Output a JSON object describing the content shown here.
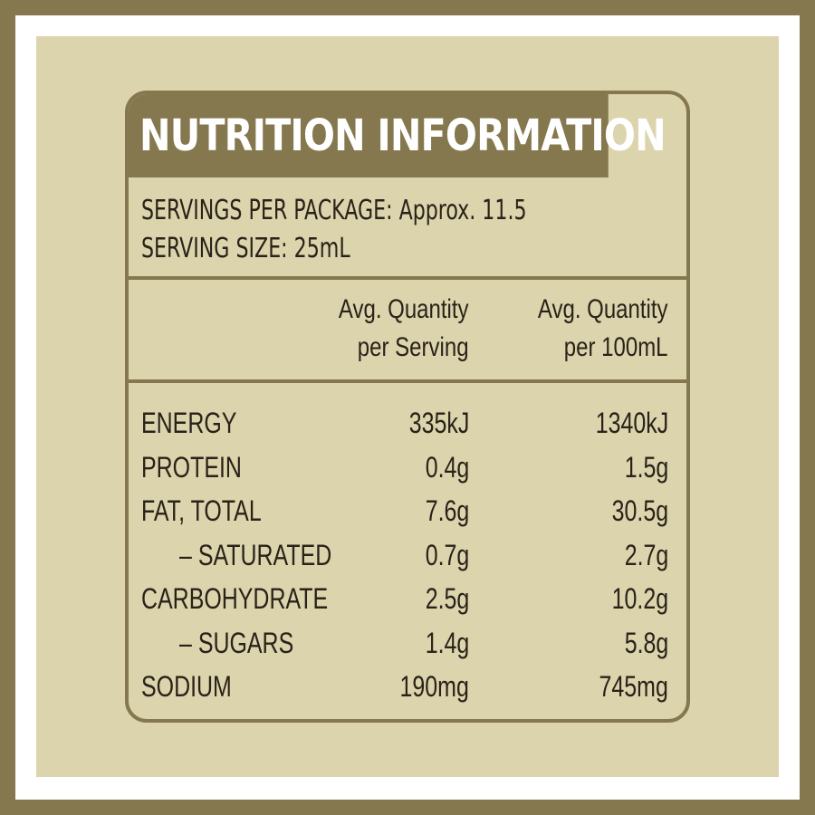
{
  "title": "NUTRITION INFORMATION",
  "servings_per_package": "SERVINGS PER PACKAGE: Approx. 11.5",
  "serving_size": "SERVING SIZE: 25mL",
  "headers": {
    "per_serving_line1": "Avg. Quantity",
    "per_serving_line2": "per Serving",
    "per_100_line1": "Avg. Quantity",
    "per_100_line2": "per 100mL"
  },
  "rows": [
    {
      "name": "ENERGY",
      "per_serving": "335kJ",
      "per_100": "1340kJ"
    },
    {
      "name": "PROTEIN",
      "per_serving": "0.4g",
      "per_100": "1.5g"
    },
    {
      "name": "FAT, TOTAL",
      "per_serving": "7.6g",
      "per_100": "30.5g"
    },
    {
      "name": "– SATURATED",
      "per_serving": "0.7g",
      "per_100": "2.7g"
    },
    {
      "name": "CARBOHYDRATE",
      "per_serving": "2.5g",
      "per_100": "10.2g"
    },
    {
      "name": "– SUGARS",
      "per_serving": "1.4g",
      "per_100": "5.8g"
    },
    {
      "name": "SODIUM",
      "per_serving": "190mg",
      "per_100": "745mg"
    }
  ],
  "colors": {
    "frame": "#86784e",
    "background": "#dcd4ad",
    "text": "#2a2218",
    "title_text": "#ffffff"
  }
}
